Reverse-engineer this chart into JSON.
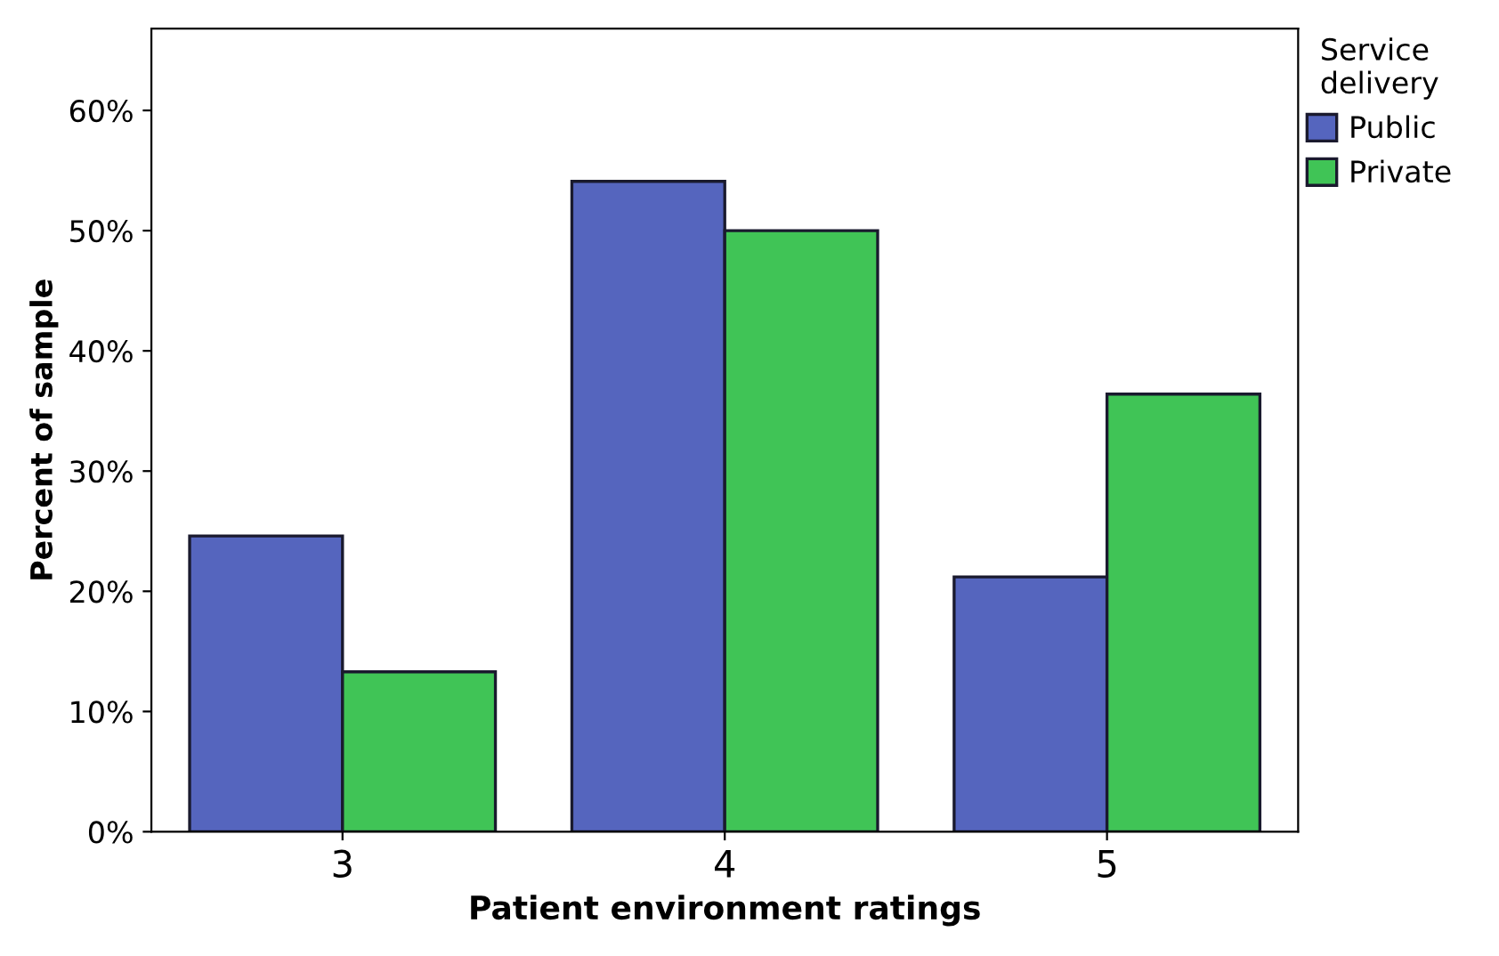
{
  "chart_data": {
    "type": "bar",
    "xlabel": "Patient environment ratings",
    "ylabel": "Percent of sample",
    "legend_title": "Service\ndelivery",
    "legend": "top right",
    "grid": false,
    "categories": [
      "3",
      "4",
      "5"
    ],
    "series": [
      {
        "name": "Public",
        "color": "#5565be",
        "values": [
          24.6,
          54.1,
          21.2
        ]
      },
      {
        "name": "Private",
        "color": "#40c456",
        "values": [
          13.3,
          50.0,
          36.4
        ]
      }
    ],
    "ylim": [
      0,
      66.8
    ],
    "yticks": [
      {
        "value": 0,
        "label": "0%"
      },
      {
        "value": 10,
        "label": "10%"
      },
      {
        "value": 20,
        "label": "20%"
      },
      {
        "value": 30,
        "label": "30%"
      },
      {
        "value": 40,
        "label": "40%"
      },
      {
        "value": 50,
        "label": "50%"
      },
      {
        "value": 60,
        "label": "60%"
      }
    ]
  }
}
